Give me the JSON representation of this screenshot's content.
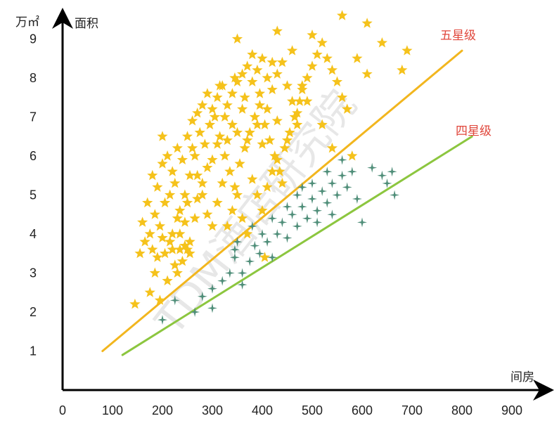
{
  "chart_data": {
    "type": "scatter",
    "title": "",
    "xlabel": "间房",
    "ylabel": "面积",
    "yunit": "万㎡",
    "xlim": [
      0,
      900
    ],
    "ylim": [
      0,
      9.8
    ],
    "x_ticks": [
      "0",
      "100",
      "200",
      "300",
      "400",
      "500",
      "600",
      "700",
      "800",
      "900"
    ],
    "y_ticks": [
      "1",
      "2",
      "3",
      "4",
      "5",
      "6",
      "7",
      "8",
      "9"
    ],
    "watermark": "TDM酒店研究院",
    "colors": {
      "five_star": "#f5c21b",
      "four_star": "#4e8d78",
      "five_line": "#f2b61e",
      "four_line": "#8cc63f",
      "label": "#e0463b"
    },
    "lines": [
      {
        "name": "五星级",
        "color": "#f2b61e",
        "points": [
          [
            80,
            1.0
          ],
          [
            800,
            8.7
          ]
        ]
      },
      {
        "name": "四星级",
        "color": "#8cc63f",
        "points": [
          [
            120,
            0.9
          ],
          [
            820,
            6.5
          ]
        ]
      }
    ],
    "series": [
      {
        "marker": "star",
        "color": "#f5c21b",
        "points": [
          [
            145,
            2.2
          ],
          [
            175,
            2.5
          ],
          [
            185,
            3.0
          ],
          [
            195,
            2.3
          ],
          [
            205,
            3.5
          ],
          [
            215,
            3.8
          ],
          [
            225,
            3.2
          ],
          [
            235,
            4.0
          ],
          [
            155,
            3.5
          ],
          [
            165,
            3.8
          ],
          [
            160,
            4.3
          ],
          [
            175,
            4.0
          ],
          [
            185,
            4.5
          ],
          [
            195,
            4.2
          ],
          [
            205,
            4.8
          ],
          [
            215,
            5.0
          ],
          [
            225,
            5.3
          ],
          [
            235,
            4.6
          ],
          [
            245,
            4.3
          ],
          [
            250,
            3.6
          ],
          [
            255,
            3.8
          ],
          [
            240,
            3.3
          ],
          [
            230,
            3.0
          ],
          [
            220,
            3.6
          ],
          [
            170,
            4.8
          ],
          [
            180,
            5.5
          ],
          [
            190,
            5.2
          ],
          [
            200,
            5.8
          ],
          [
            210,
            6.0
          ],
          [
            220,
            5.6
          ],
          [
            230,
            6.2
          ],
          [
            240,
            5.9
          ],
          [
            250,
            6.5
          ],
          [
            260,
            6.2
          ],
          [
            270,
            5.5
          ],
          [
            280,
            5.0
          ],
          [
            290,
            4.5
          ],
          [
            300,
            4.2
          ],
          [
            310,
            4.8
          ],
          [
            320,
            5.3
          ],
          [
            245,
            5.0
          ],
          [
            255,
            5.5
          ],
          [
            265,
            6.0
          ],
          [
            275,
            6.6
          ],
          [
            285,
            6.3
          ],
          [
            295,
            6.8
          ],
          [
            305,
            7.0
          ],
          [
            315,
            6.5
          ],
          [
            325,
            6.0
          ],
          [
            335,
            5.6
          ],
          [
            345,
            5.2
          ],
          [
            355,
            5.8
          ],
          [
            365,
            6.2
          ],
          [
            375,
            6.6
          ],
          [
            385,
            7.0
          ],
          [
            395,
            7.3
          ],
          [
            405,
            6.8
          ],
          [
            415,
            6.4
          ],
          [
            425,
            6.0
          ],
          [
            435,
            5.6
          ],
          [
            445,
            6.2
          ],
          [
            455,
            6.6
          ],
          [
            465,
            7.0
          ],
          [
            475,
            7.4
          ],
          [
            260,
            6.9
          ],
          [
            270,
            7.1
          ],
          [
            280,
            7.3
          ],
          [
            290,
            7.6
          ],
          [
            300,
            7.2
          ],
          [
            310,
            7.5
          ],
          [
            320,
            7.8
          ],
          [
            330,
            7.3
          ],
          [
            340,
            7.6
          ],
          [
            350,
            7.9
          ],
          [
            360,
            8.1
          ],
          [
            370,
            8.3
          ],
          [
            380,
            7.9
          ],
          [
            390,
            8.2
          ],
          [
            400,
            8.5
          ],
          [
            410,
            8.0
          ],
          [
            420,
            7.7
          ],
          [
            430,
            8.1
          ],
          [
            440,
            8.4
          ],
          [
            450,
            7.8
          ],
          [
            460,
            7.4
          ],
          [
            470,
            7.1
          ],
          [
            480,
            7.7
          ],
          [
            490,
            8.0
          ],
          [
            500,
            8.3
          ],
          [
            510,
            8.6
          ],
          [
            520,
            8.9
          ],
          [
            530,
            8.5
          ],
          [
            540,
            8.2
          ],
          [
            550,
            7.9
          ],
          [
            560,
            7.5
          ],
          [
            570,
            7.2
          ],
          [
            350,
            9.0
          ],
          [
            430,
            9.2
          ],
          [
            500,
            9.1
          ],
          [
            560,
            9.6
          ],
          [
            610,
            9.4
          ],
          [
            610,
            8.1
          ],
          [
            590,
            8.5
          ],
          [
            640,
            8.9
          ],
          [
            680,
            8.2
          ],
          [
            690,
            8.7
          ],
          [
            380,
            8.6
          ],
          [
            420,
            8.4
          ],
          [
            460,
            8.7
          ],
          [
            520,
            6.8
          ],
          [
            540,
            6.2
          ],
          [
            580,
            6.0
          ],
          [
            330,
            4.2
          ],
          [
            340,
            4.6
          ],
          [
            350,
            5.0
          ],
          [
            360,
            4.4
          ],
          [
            370,
            4.0
          ],
          [
            380,
            5.4
          ],
          [
            390,
            5.0
          ],
          [
            400,
            4.6
          ],
          [
            410,
            5.2
          ],
          [
            420,
            5.6
          ],
          [
            430,
            5.9
          ],
          [
            440,
            5.3
          ],
          [
            330,
            6.4
          ],
          [
            340,
            6.8
          ],
          [
            360,
            7.2
          ],
          [
            300,
            5.9
          ],
          [
            310,
            6.3
          ],
          [
            290,
            5.7
          ],
          [
            280,
            5.3
          ],
          [
            270,
            4.9
          ],
          [
            265,
            4.4
          ],
          [
            250,
            4.8
          ],
          [
            230,
            4.4
          ],
          [
            220,
            4.0
          ],
          [
            200,
            3.9
          ],
          [
            190,
            3.4
          ],
          [
            180,
            3.6
          ],
          [
            210,
            2.8
          ],
          [
            235,
            3.6
          ],
          [
            245,
            3.7
          ],
          [
            255,
            3.5
          ],
          [
            480,
            7.8
          ],
          [
            490,
            7.4
          ],
          [
            470,
            6.8
          ],
          [
            450,
            6.4
          ],
          [
            430,
            6.9
          ],
          [
            410,
            7.2
          ],
          [
            390,
            6.8
          ],
          [
            370,
            6.4
          ],
          [
            350,
            6.6
          ],
          [
            325,
            7.0
          ],
          [
            315,
            7.8
          ],
          [
            345,
            8.0
          ],
          [
            365,
            7.5
          ],
          [
            395,
            7.6
          ],
          [
            400,
            6.3
          ],
          [
            405,
            3.4
          ],
          [
            200,
            6.5
          ]
        ]
      },
      {
        "marker": "cross",
        "color": "#4e8d78",
        "points": [
          [
            200,
            1.8
          ],
          [
            225,
            2.3
          ],
          [
            265,
            2.0
          ],
          [
            280,
            2.4
          ],
          [
            300,
            2.6
          ],
          [
            320,
            2.8
          ],
          [
            335,
            3.0
          ],
          [
            345,
            3.4
          ],
          [
            360,
            3.0
          ],
          [
            375,
            3.3
          ],
          [
            385,
            3.7
          ],
          [
            395,
            3.5
          ],
          [
            410,
            3.8
          ],
          [
            420,
            3.4
          ],
          [
            430,
            4.0
          ],
          [
            440,
            4.3
          ],
          [
            450,
            3.9
          ],
          [
            460,
            4.5
          ],
          [
            470,
            4.2
          ],
          [
            480,
            4.7
          ],
          [
            490,
            4.4
          ],
          [
            500,
            4.9
          ],
          [
            510,
            4.6
          ],
          [
            520,
            5.1
          ],
          [
            530,
            4.8
          ],
          [
            540,
            5.3
          ],
          [
            550,
            5.0
          ],
          [
            560,
            5.5
          ],
          [
            570,
            5.2
          ],
          [
            580,
            5.6
          ],
          [
            590,
            4.9
          ],
          [
            600,
            4.3
          ],
          [
            620,
            5.7
          ],
          [
            640,
            5.5
          ],
          [
            650,
            5.3
          ],
          [
            660,
            5.6
          ],
          [
            665,
            5.0
          ],
          [
            350,
            3.8
          ],
          [
            380,
            4.2
          ],
          [
            400,
            4.0
          ],
          [
            345,
            3.6
          ],
          [
            360,
            2.7
          ],
          [
            300,
            2.1
          ],
          [
            470,
            5.0
          ],
          [
            500,
            5.3
          ],
          [
            530,
            5.6
          ],
          [
            560,
            5.9
          ],
          [
            450,
            4.7
          ],
          [
            480,
            5.2
          ],
          [
            420,
            4.4
          ],
          [
            510,
            4.3
          ],
          [
            540,
            4.5
          ]
        ]
      }
    ]
  }
}
